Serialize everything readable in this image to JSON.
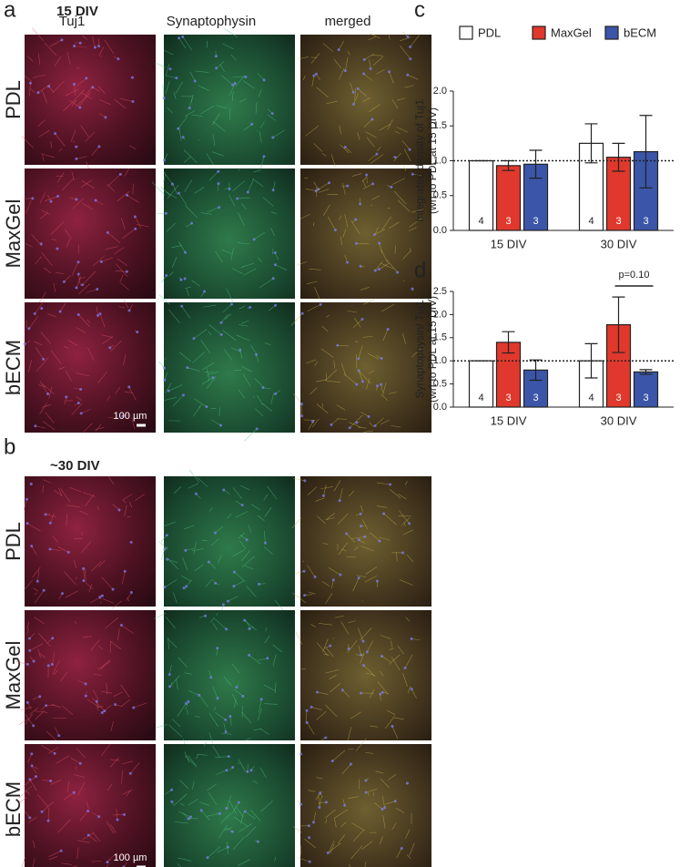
{
  "figure": {
    "panel_a": {
      "label": "a",
      "title": "15 DIV",
      "scale_bar": "100 µm"
    },
    "panel_b": {
      "label": "b",
      "title": "~30 DIV",
      "scale_bar": "100 µm"
    },
    "columns": [
      "Tuj1",
      "Synaptophysin",
      "merged"
    ],
    "rows": [
      "PDL",
      "MaxGel",
      "bECM"
    ]
  },
  "chart_data": [
    {
      "type": "bar",
      "panel": "c",
      "y_label": [
        "Integrated density of Tuj1",
        "(wrt to PDL at 15 DIV)"
      ],
      "categories": [
        "15 DIV",
        "30 DIV"
      ],
      "series": [
        {
          "name": "PDL",
          "color": "#ffffff",
          "values": [
            1.0,
            1.25
          ],
          "errors": [
            0,
            0.28
          ],
          "n": [
            4,
            4
          ]
        },
        {
          "name": "MaxGel",
          "color": "#e0382c",
          "values": [
            0.93,
            1.05
          ],
          "errors": [
            0.07,
            0.2
          ],
          "n": [
            3,
            3
          ]
        },
        {
          "name": "bECM",
          "color": "#3b55a8",
          "values": [
            0.95,
            1.13
          ],
          "errors": [
            0.2,
            0.52
          ],
          "n": [
            3,
            3
          ]
        }
      ],
      "ylim": [
        0,
        2
      ],
      "yticks": [
        {
          "value": 0,
          "label": "0.0"
        },
        {
          "value": 0.5,
          "label": "0.5"
        },
        {
          "value": 1,
          "label": "1.0"
        },
        {
          "value": 1.5,
          "label": "1.5"
        },
        {
          "value": 2,
          "label": "2.0"
        }
      ],
      "reference_line": 1,
      "legend": "top"
    },
    {
      "type": "bar",
      "panel": "d",
      "y_label": [
        "Synaptophysin/ Tuj1",
        "(wrt to PDL at 15 DIV)"
      ],
      "categories": [
        "15 DIV",
        "30 DIV"
      ],
      "series": [
        {
          "name": "PDL",
          "color": "#ffffff",
          "values": [
            1.0,
            1.0
          ],
          "errors": [
            0,
            0.37
          ],
          "n": [
            4,
            4
          ]
        },
        {
          "name": "MaxGel",
          "color": "#e0382c",
          "values": [
            1.4,
            1.78
          ],
          "errors": [
            0.23,
            0.6
          ],
          "n": [
            3,
            3
          ]
        },
        {
          "name": "bECM",
          "color": "#3b55a8",
          "values": [
            0.8,
            0.76
          ],
          "errors": [
            0.22,
            0.05
          ],
          "n": [
            3,
            3
          ]
        }
      ],
      "ylim": [
        0,
        2.5
      ],
      "yticks": [
        {
          "value": 0,
          "label": "0.0"
        },
        {
          "value": 0.5,
          "label": "0.5"
        },
        {
          "value": 1,
          "label": "1.0"
        },
        {
          "value": 1.5,
          "label": "1.5"
        },
        {
          "value": 2,
          "label": "2.0"
        },
        {
          "value": 2.5,
          "label": "2.5"
        }
      ],
      "reference_line": 1,
      "annotation": "p=0.10"
    }
  ]
}
